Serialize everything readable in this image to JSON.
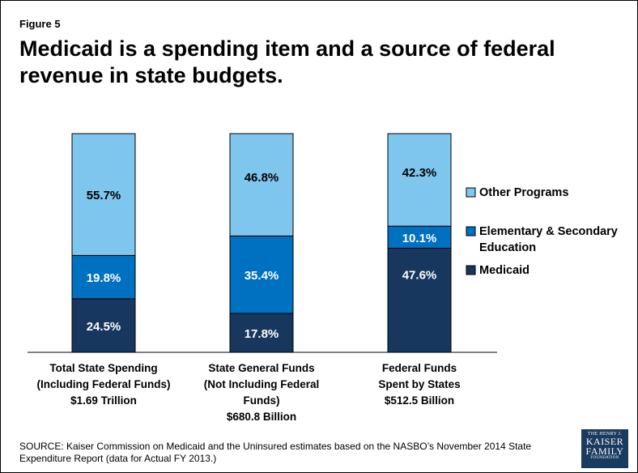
{
  "figure_label": "Figure 5",
  "title": "Medicaid is a spending item and a source of federal revenue in state budgets.",
  "source": "SOURCE: Kaiser Commission on Medicaid and the Uninsured estimates based on the NASBO’s November 2014 State Expenditure Report (data for Actual FY 2013.)",
  "logo": {
    "line1": "THE HENRY J.",
    "line2": "KAISER",
    "line3": "FAMILY",
    "line4": "FOUNDATION"
  },
  "colors": {
    "medicaid": "#17375e",
    "education": "#0070c0",
    "other": "#7fc6ee"
  },
  "chart_data": {
    "type": "bar",
    "stacked": true,
    "percent": true,
    "categories": [
      [
        "Total State Spending",
        "(Including Federal Funds)",
        "$1.69 Trillion"
      ],
      [
        "State General Funds",
        "(Not Including Federal",
        "Funds)",
        "$680.8 Billion"
      ],
      [
        "Federal Funds",
        "Spent by States",
        "$512.5 Billion"
      ]
    ],
    "series": [
      {
        "name": "Medicaid",
        "values": [
          24.5,
          17.8,
          47.6
        ],
        "labels": [
          "24.5%",
          "17.8%",
          "47.6%"
        ],
        "color": "#17375e"
      },
      {
        "name": "Elementary & Secondary Education",
        "values": [
          19.8,
          35.4,
          10.1
        ],
        "labels": [
          "19.8%",
          "35.4%",
          "10.1%"
        ],
        "color": "#0070c0"
      },
      {
        "name": "Other Programs",
        "values": [
          55.7,
          46.8,
          42.3
        ],
        "labels": [
          "55.7%",
          "46.8%",
          "42.3%"
        ],
        "color": "#7fc6ee"
      }
    ],
    "legend": [
      {
        "lines": [
          "Other Programs"
        ],
        "color": "#7fc6ee"
      },
      {
        "lines": [
          "Elementary & Secondary",
          "Education"
        ],
        "color": "#0070c0"
      },
      {
        "lines": [
          "Medicaid"
        ],
        "color": "#17375e"
      }
    ],
    "legend_position": "right",
    "ylim": [
      0,
      100
    ],
    "grid": false
  }
}
